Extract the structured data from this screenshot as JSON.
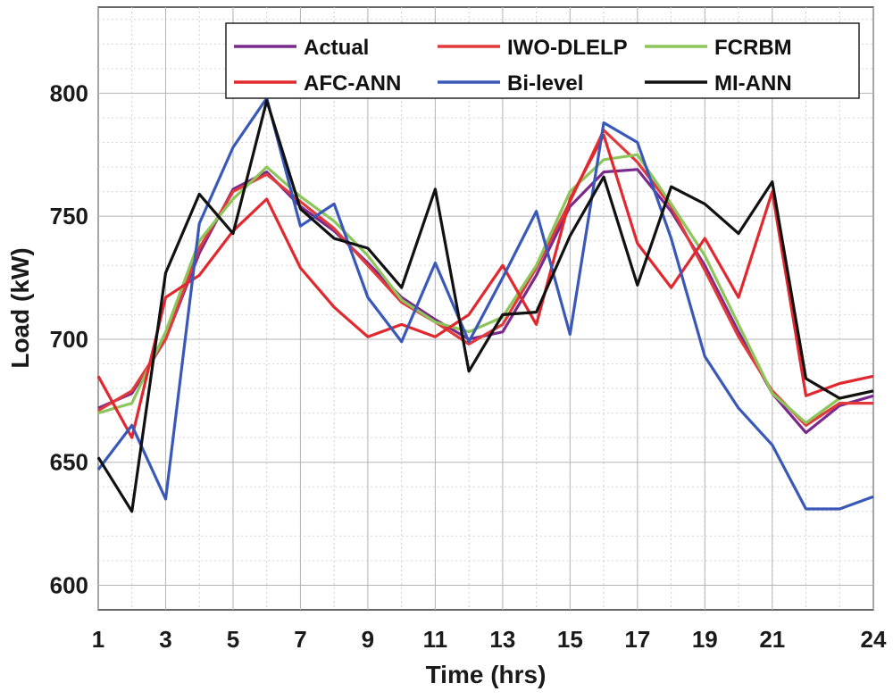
{
  "chart_data": {
    "type": "line",
    "title": "",
    "xlabel": "Time (hrs)",
    "ylabel": "Load (kW)",
    "xlim": [
      1,
      24
    ],
    "ylim": [
      590,
      835
    ],
    "x_ticks": [
      "1",
      "3",
      "5",
      "7",
      "9",
      "11",
      "13",
      "15",
      "17",
      "19",
      "21",
      "24"
    ],
    "y_ticks": [
      "600",
      "650",
      "700",
      "750",
      "800"
    ],
    "grid": true,
    "legend_position": "top-right",
    "x": [
      1,
      2,
      3,
      4,
      5,
      6,
      7,
      8,
      9,
      10,
      11,
      12,
      13,
      14,
      15,
      16,
      17,
      18,
      19,
      20,
      21,
      22,
      23,
      24
    ],
    "series": [
      {
        "name": "Actual",
        "color": "#7a2a8c",
        "values": [
          672,
          678,
          700,
          735,
          761,
          768,
          754,
          744,
          731,
          717,
          708,
          700,
          703,
          726,
          754,
          768,
          769,
          752,
          730,
          703,
          678,
          662,
          673,
          677
        ]
      },
      {
        "name": "IWO-DLELP",
        "color": "#e23a3a",
        "values": [
          671,
          679,
          700,
          737,
          760,
          767,
          756,
          745,
          730,
          715,
          707,
          698,
          706,
          729,
          756,
          785,
          772,
          754,
          728,
          701,
          679,
          665,
          674,
          674
        ]
      },
      {
        "name": "FCRBM",
        "color": "#8cc65a",
        "values": [
          670,
          674,
          703,
          740,
          757,
          770,
          758,
          748,
          734,
          716,
          707,
          703,
          709,
          730,
          760,
          773,
          775,
          755,
          734,
          706,
          678,
          666,
          676,
          679
        ]
      },
      {
        "name": "AFC-ANN",
        "color": "#e0282e",
        "values": [
          685,
          660,
          717,
          726,
          744,
          757,
          729,
          713,
          701,
          706,
          701,
          710,
          730,
          706,
          757,
          783,
          739,
          721,
          741,
          717,
          760,
          677,
          682,
          685
        ]
      },
      {
        "name": "Bi-level",
        "color": "#3a58b8",
        "values": [
          647,
          665,
          635,
          747,
          778,
          798,
          746,
          755,
          717,
          699,
          731,
          699,
          725,
          752,
          702,
          788,
          780,
          741,
          693,
          672,
          657,
          631,
          631,
          636
        ]
      },
      {
        "name": "MI-ANN",
        "color": "#111111",
        "values": [
          652,
          630,
          727,
          759,
          743,
          797,
          753,
          741,
          737,
          721,
          761,
          687,
          710,
          711,
          742,
          766,
          722,
          762,
          755,
          743,
          764,
          684,
          676,
          679
        ]
      }
    ]
  }
}
